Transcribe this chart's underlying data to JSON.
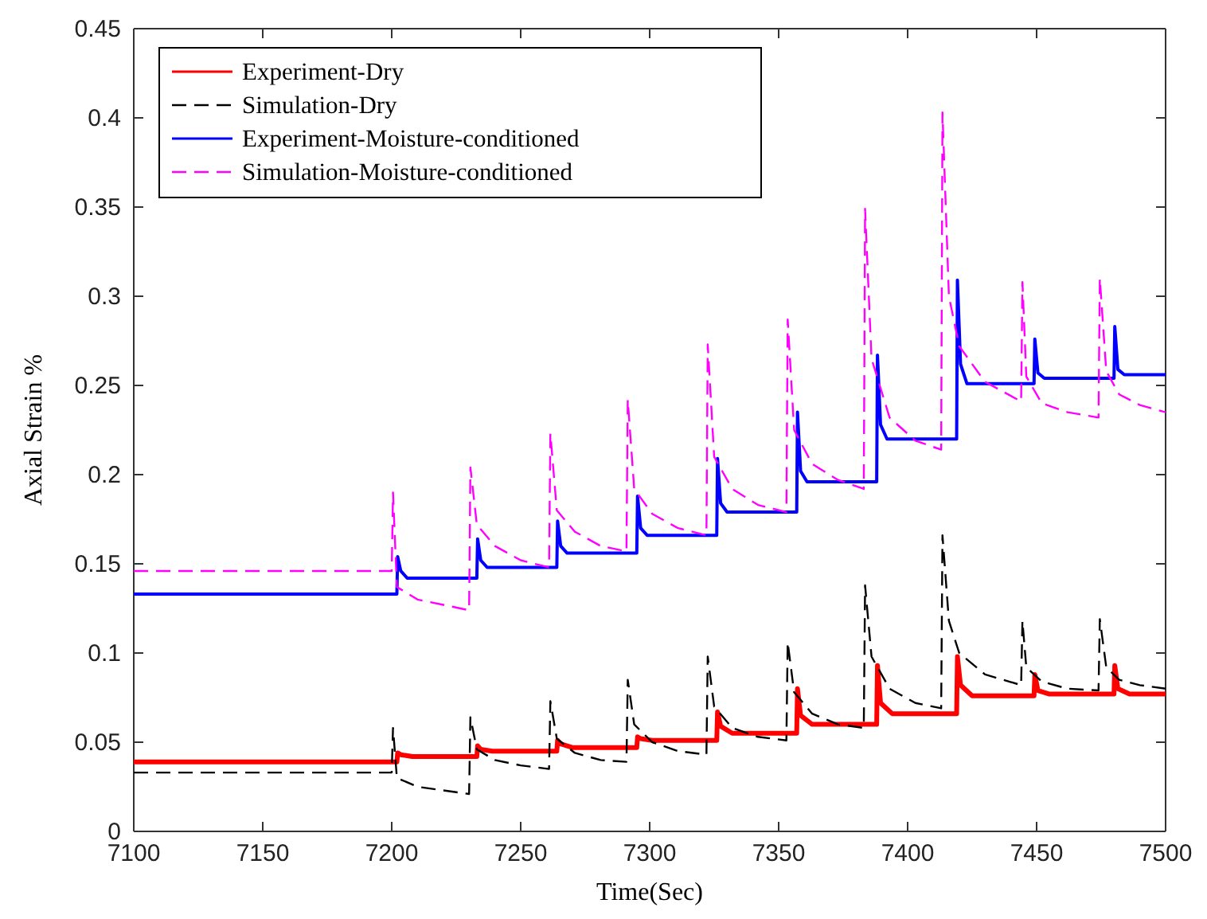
{
  "chart_data": {
    "type": "line",
    "xlabel": "Time(Sec)",
    "ylabel": "Axial Strain %",
    "xlim": [
      7100,
      7500
    ],
    "ylim": [
      0,
      0.45
    ],
    "xticks": [
      7100,
      7150,
      7200,
      7250,
      7300,
      7350,
      7400,
      7450,
      7500
    ],
    "yticks": [
      0,
      0.05,
      0.1,
      0.15,
      0.2,
      0.25,
      0.3,
      0.35,
      0.4,
      0.45
    ],
    "grid": false,
    "legend": "top left",
    "marker": "none",
    "series": [
      {
        "name": "Experiment-Dry",
        "color": "#ff0000",
        "line_style": "solid",
        "x": [
          7100,
          7202,
          7202.3,
          7203.5,
          7208,
          7233,
          7233.3,
          7234.5,
          7239,
          7264,
          7264.3,
          7265.5,
          7270,
          7295,
          7295.3,
          7296.5,
          7301,
          7326,
          7326.3,
          7327.5,
          7332,
          7357,
          7357.3,
          7358.5,
          7363,
          7388,
          7388.3,
          7389.5,
          7394,
          7419,
          7419.3,
          7420.5,
          7425,
          7449,
          7449.3,
          7450.5,
          7455,
          7480,
          7480.3,
          7481.5,
          7486,
          7500
        ],
        "values": [
          0.039,
          0.039,
          0.044,
          0.043,
          0.042,
          0.042,
          0.048,
          0.046,
          0.045,
          0.045,
          0.051,
          0.049,
          0.047,
          0.047,
          0.053,
          0.052,
          0.051,
          0.051,
          0.067,
          0.059,
          0.055,
          0.055,
          0.08,
          0.065,
          0.06,
          0.06,
          0.093,
          0.072,
          0.066,
          0.066,
          0.098,
          0.082,
          0.076,
          0.076,
          0.088,
          0.079,
          0.077,
          0.077,
          0.093,
          0.08,
          0.077,
          0.077
        ]
      },
      {
        "name": "Simulation-Dry",
        "color": "#000000",
        "line_style": "dashed",
        "x": [
          7100,
          7200,
          7200.5,
          7202,
          7210,
          7230,
          7230.5,
          7233,
          7240,
          7250,
          7261,
          7261.5,
          7264,
          7271,
          7281,
          7291,
          7291.5,
          7294,
          7301,
          7311,
          7322,
          7322.5,
          7325,
          7332,
          7342,
          7353,
          7353.5,
          7356,
          7363,
          7373,
          7383,
          7383.5,
          7386,
          7393,
          7403,
          7413,
          7413.5,
          7416,
          7420,
          7430,
          7444,
          7444.5,
          7446,
          7452,
          7462,
          7474,
          7474.5,
          7477,
          7482,
          7490,
          7500
        ],
        "values": [
          0.033,
          0.033,
          0.058,
          0.03,
          0.025,
          0.021,
          0.064,
          0.046,
          0.04,
          0.037,
          0.035,
          0.073,
          0.052,
          0.044,
          0.04,
          0.039,
          0.085,
          0.06,
          0.05,
          0.045,
          0.043,
          0.098,
          0.07,
          0.058,
          0.053,
          0.051,
          0.106,
          0.078,
          0.066,
          0.06,
          0.058,
          0.138,
          0.098,
          0.08,
          0.072,
          0.069,
          0.166,
          0.118,
          0.1,
          0.088,
          0.082,
          0.118,
          0.092,
          0.084,
          0.08,
          0.079,
          0.119,
          0.092,
          0.085,
          0.082,
          0.08
        ]
      },
      {
        "name": "Experiment-Moisture-conditioned",
        "color": "#0000ff",
        "line_style": "solid",
        "x": [
          7100,
          7202,
          7202.3,
          7203.5,
          7206,
          7233,
          7233.3,
          7234.5,
          7237,
          7264,
          7264.3,
          7265.5,
          7268,
          7295,
          7295.3,
          7296.5,
          7299,
          7326,
          7326.3,
          7327.5,
          7330,
          7357,
          7357.3,
          7358.5,
          7361,
          7388,
          7388.3,
          7389.5,
          7392,
          7419,
          7419.3,
          7420.5,
          7423,
          7449,
          7449.3,
          7450.5,
          7453,
          7480,
          7480.3,
          7481.5,
          7484,
          7500
        ],
        "values": [
          0.133,
          0.133,
          0.154,
          0.146,
          0.142,
          0.142,
          0.164,
          0.152,
          0.148,
          0.148,
          0.174,
          0.16,
          0.156,
          0.156,
          0.188,
          0.17,
          0.166,
          0.166,
          0.209,
          0.184,
          0.179,
          0.179,
          0.235,
          0.202,
          0.196,
          0.196,
          0.267,
          0.228,
          0.22,
          0.22,
          0.309,
          0.262,
          0.251,
          0.251,
          0.276,
          0.257,
          0.254,
          0.254,
          0.283,
          0.259,
          0.256,
          0.256
        ]
      },
      {
        "name": "Simulation-Moisture-conditioned",
        "color": "#ff00ff",
        "line_style": "dashed",
        "x": [
          7100,
          7200,
          7200.5,
          7202,
          7210,
          7230,
          7230.5,
          7233,
          7240,
          7250,
          7261,
          7261.5,
          7264,
          7271,
          7281,
          7291,
          7291.5,
          7294,
          7301,
          7311,
          7322,
          7322.5,
          7325,
          7332,
          7342,
          7353,
          7353.5,
          7356,
          7363,
          7373,
          7383,
          7383.5,
          7386,
          7393,
          7403,
          7413,
          7413.5,
          7416,
          7420,
          7430,
          7444,
          7444.5,
          7446,
          7452,
          7462,
          7474,
          7474.5,
          7477,
          7482,
          7490,
          7500
        ],
        "values": [
          0.146,
          0.146,
          0.19,
          0.137,
          0.13,
          0.124,
          0.204,
          0.172,
          0.16,
          0.152,
          0.148,
          0.223,
          0.18,
          0.168,
          0.16,
          0.157,
          0.242,
          0.192,
          0.178,
          0.17,
          0.166,
          0.273,
          0.21,
          0.192,
          0.183,
          0.179,
          0.287,
          0.225,
          0.206,
          0.197,
          0.192,
          0.349,
          0.265,
          0.232,
          0.219,
          0.214,
          0.403,
          0.3,
          0.272,
          0.252,
          0.241,
          0.308,
          0.255,
          0.24,
          0.235,
          0.232,
          0.31,
          0.258,
          0.245,
          0.239,
          0.235
        ]
      }
    ]
  }
}
